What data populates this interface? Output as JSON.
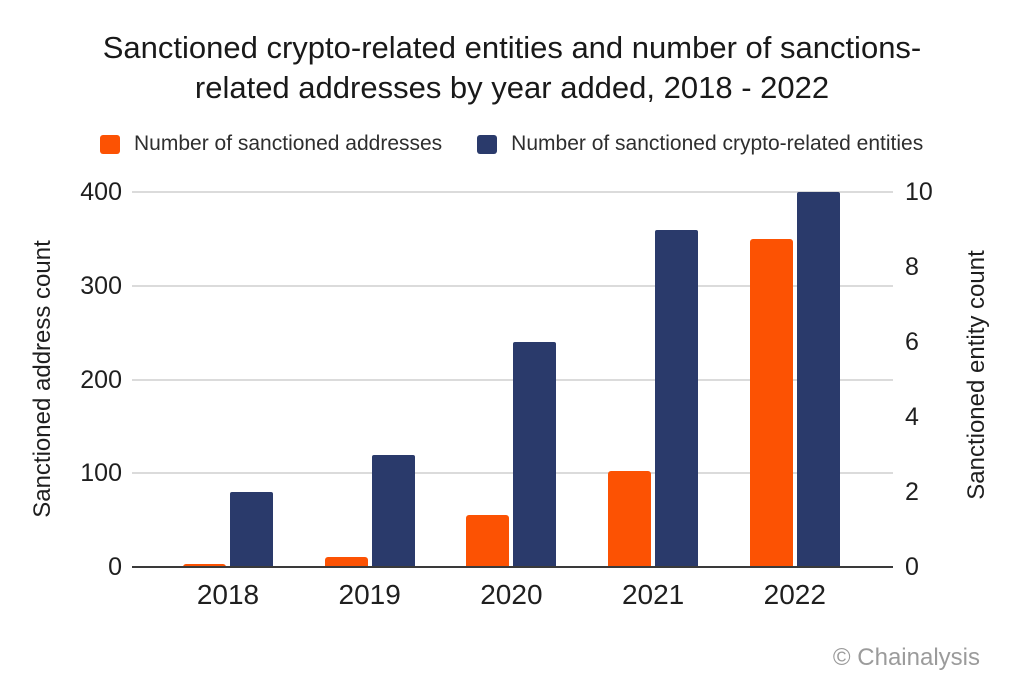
{
  "title": {
    "line1": "Sanctioned crypto-related entities and number of sanctions-",
    "line2": "related addresses by year added, 2018 - 2022"
  },
  "legend": [
    {
      "label": "Number of sanctioned addresses",
      "color": "#FC5203"
    },
    {
      "label": "Number of sanctioned crypto-related entities",
      "color": "#2A3A6B"
    }
  ],
  "footer": {
    "credit": "© Chainalysis"
  },
  "chart_data": {
    "type": "bar",
    "title": "Sanctioned crypto-related entities and number of sanctions-related addresses by year added, 2018 - 2022",
    "categories": [
      "2018",
      "2019",
      "2020",
      "2021",
      "2022"
    ],
    "series": [
      {
        "name": "Number of sanctioned addresses",
        "key": "addresses",
        "axis": "left",
        "color": "#FC5203",
        "values": [
          3,
          11,
          55,
          102,
          350
        ]
      },
      {
        "name": "Number of sanctioned crypto-related entities",
        "key": "entities",
        "axis": "right",
        "color": "#2A3A6B",
        "values": [
          2,
          3,
          6,
          9,
          10
        ]
      }
    ],
    "left_axis": {
      "label": "Sanctioned address count",
      "range": [
        0,
        400
      ],
      "ticks": [
        0,
        100,
        200,
        300,
        400
      ]
    },
    "right_axis": {
      "label": "Sanctioned entity count",
      "range": [
        0,
        10
      ],
      "ticks": [
        0,
        2,
        4,
        6,
        8,
        10
      ]
    },
    "grid": "horizontal",
    "legend_position": "top",
    "colors": {
      "gridline": "#DBDBDB",
      "axis_line": "#3A3A3A",
      "background": "#FFFFFF"
    }
  }
}
